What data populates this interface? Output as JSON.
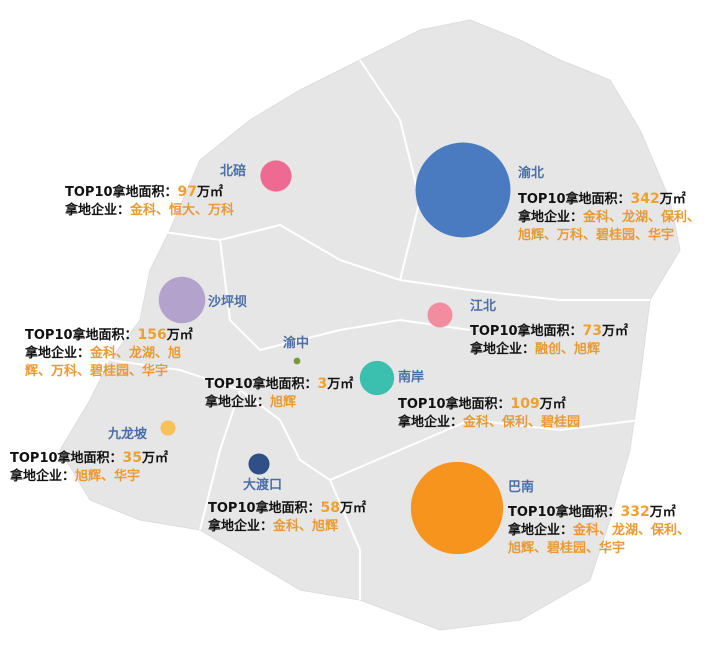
{
  "area_label": "TOP10拿地面积：",
  "unit": "万㎡",
  "company_label": "拿地企业：",
  "districts": [
    {
      "name": "北碚",
      "value": 97,
      "color": "#ef6a92",
      "companies": "金科、恒大、万科"
    },
    {
      "name": "渝北",
      "value": 342,
      "color": "#4a7ac0",
      "companies": "金科、龙湖、保利、旭辉、万科、碧桂园、华宇"
    },
    {
      "name": "沙坪坝",
      "value": 156,
      "color": "#b3a3cc",
      "companies": "金科、龙湖、旭辉、万科、碧桂园、华宇"
    },
    {
      "name": "江北",
      "value": 73,
      "color": "#f28da0",
      "companies": "融创、旭辉"
    },
    {
      "name": "渝中",
      "value": 3,
      "color": "#7a9a3a",
      "companies": "旭辉"
    },
    {
      "name": "南岸",
      "value": 109,
      "color": "#3bbfae",
      "companies": "金科、保利、碧桂园"
    },
    {
      "name": "九龙坡",
      "value": 35,
      "color": "#f7c05a",
      "companies": "旭辉、华宇"
    },
    {
      "name": "大渡口",
      "value": 58,
      "color": "#2f4f86",
      "companies": "金科、旭辉"
    },
    {
      "name": "巴南",
      "value": 332,
      "color": "#f7941d",
      "companies": "金科、龙湖、保利、旭辉、碧桂园、华宇"
    }
  ]
}
